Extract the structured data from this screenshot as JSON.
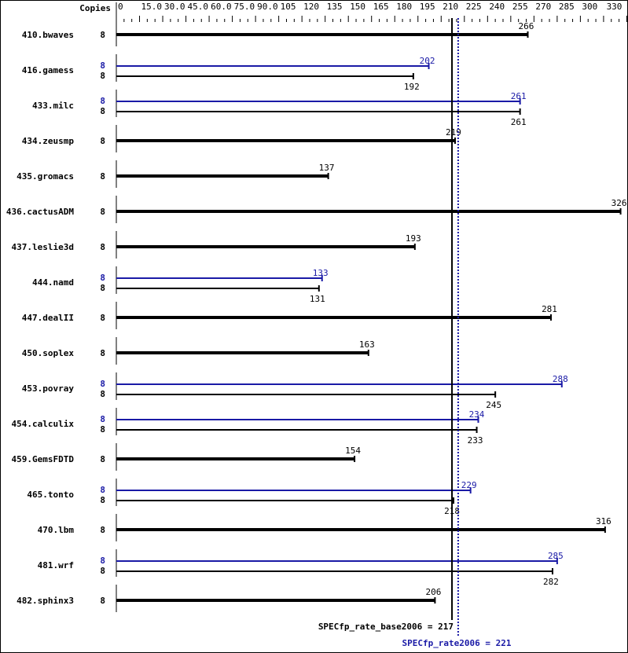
{
  "chart_data": {
    "type": "bar",
    "copies_header": "Copies",
    "ticks": [
      "0",
      "15.0",
      "30.0",
      "45.0",
      "60.0",
      "75.0",
      "90.0",
      "105",
      "120",
      "135",
      "150",
      "165",
      "180",
      "195",
      "210",
      "225",
      "240",
      "255",
      "270",
      "285",
      "300",
      "330"
    ],
    "xlim": [
      0,
      330
    ],
    "colors": {
      "base": "#000000",
      "peak": "#1a1aa6"
    },
    "benchmarks": [
      {
        "name": "410.bwaves",
        "copies": "8",
        "base": 266
      },
      {
        "name": "416.gamess",
        "copies": "8",
        "peak_copies": "8",
        "base": 192,
        "peak": 202
      },
      {
        "name": "433.milc",
        "copies": "8",
        "peak_copies": "8",
        "base": 261,
        "peak": 261
      },
      {
        "name": "434.zeusmp",
        "copies": "8",
        "base": 219
      },
      {
        "name": "435.gromacs",
        "copies": "8",
        "base": 137
      },
      {
        "name": "436.cactusADM",
        "copies": "8",
        "base": 326
      },
      {
        "name": "437.leslie3d",
        "copies": "8",
        "base": 193
      },
      {
        "name": "444.namd",
        "copies": "8",
        "peak_copies": "8",
        "base": 131,
        "peak": 133
      },
      {
        "name": "447.dealII",
        "copies": "8",
        "base": 281
      },
      {
        "name": "450.soplex",
        "copies": "8",
        "base": 163
      },
      {
        "name": "453.povray",
        "copies": "8",
        "peak_copies": "8",
        "base": 245,
        "peak": 288
      },
      {
        "name": "454.calculix",
        "copies": "8",
        "peak_copies": "8",
        "base": 233,
        "peak": 234
      },
      {
        "name": "459.GemsFDTD",
        "copies": "8",
        "base": 154
      },
      {
        "name": "465.tonto",
        "copies": "8",
        "peak_copies": "8",
        "base": 218,
        "peak": 229
      },
      {
        "name": "470.lbm",
        "copies": "8",
        "base": 316
      },
      {
        "name": "481.wrf",
        "copies": "8",
        "peak_copies": "8",
        "base": 282,
        "peak": 285
      },
      {
        "name": "482.sphinx3",
        "copies": "8",
        "base": 206
      }
    ],
    "base_summary": {
      "label": "SPECfp_rate_base2006 = 217",
      "value": 217
    },
    "peak_summary": {
      "label": "SPECfp_rate2006 = 221",
      "value": 221
    }
  }
}
